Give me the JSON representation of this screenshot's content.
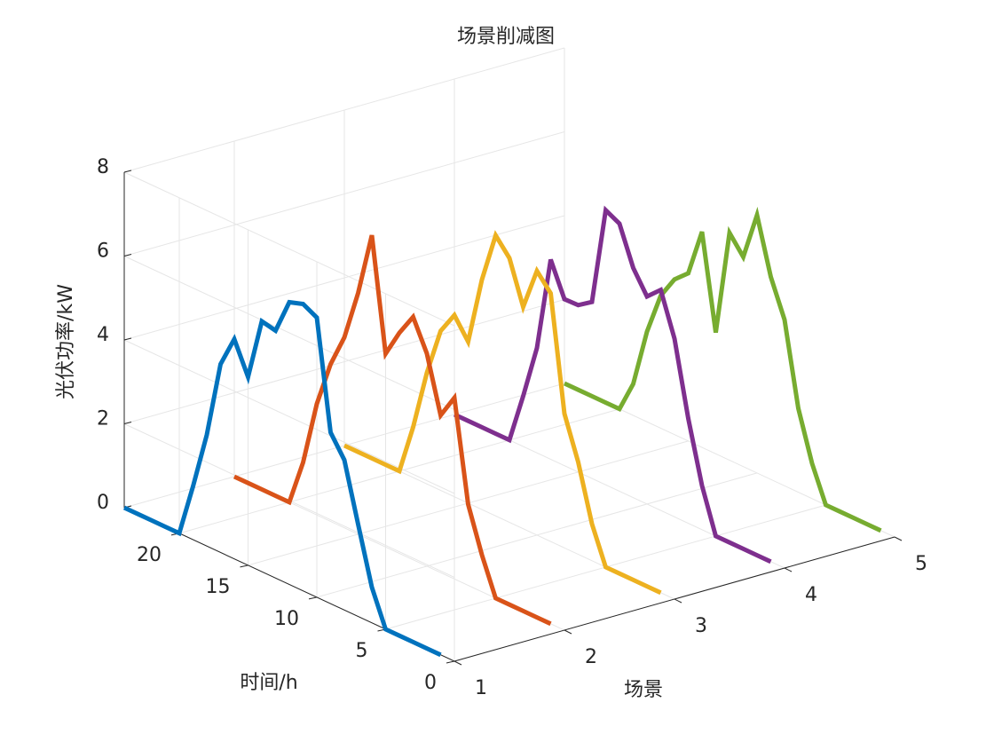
{
  "chart_data": {
    "type": "line3d",
    "title": "场景削减图",
    "xlabel": "场景",
    "ylabel": "时间/h",
    "zlabel": "光伏功率/kW",
    "y": [
      1,
      2,
      3,
      4,
      5,
      6,
      7,
      8,
      9,
      10,
      11,
      12,
      13,
      14,
      15,
      16,
      17,
      18,
      19,
      20,
      21,
      22,
      23,
      24
    ],
    "series": [
      {
        "x": 1,
        "color": "#0072BD",
        "values": [
          0,
          0,
          0,
          0,
          0,
          0.85,
          2.2,
          3.58,
          4.08,
          6.67,
          6.84,
          6.73,
          5.9,
          5.97,
          4.49,
          5.24,
          4.49,
          2.65,
          1.27,
          0,
          0,
          0,
          0,
          0
        ]
      },
      {
        "x": 2,
        "color": "#D95319",
        "values": [
          0,
          0,
          0,
          0,
          0,
          0.88,
          1.93,
          4.32,
          3.75,
          5.07,
          5.79,
          5.26,
          4.61,
          7.28,
          5.75,
          4.54,
          3.75,
          2.65,
          1.1,
          0,
          0,
          0,
          0,
          0
        ]
      },
      {
        "x": 3,
        "color": "#EDB120",
        "values": [
          0,
          0,
          0,
          0,
          0,
          0.88,
          2.2,
          3.2,
          5.92,
          6.3,
          5.29,
          6.3,
          6.69,
          5.48,
          3.85,
          4.33,
          3.8,
          2.65,
          1.2,
          0,
          0,
          0,
          0,
          0
        ]
      },
      {
        "x": 4,
        "color": "#7E2F8E",
        "values": [
          0,
          0,
          0,
          0,
          0,
          1.05,
          2.5,
          4.25,
          5.26,
          4.95,
          5.48,
          6.38,
          6.55,
          4.21,
          3.98,
          3.97,
          4.76,
          2.5,
          1.2,
          0,
          0,
          0,
          0,
          0
        ]
      },
      {
        "x": 5,
        "color": "#77AC30",
        "values": [
          0,
          0,
          0,
          0,
          0,
          0.84,
          2.0,
          3.96,
          4.83,
          6.15,
          5.0,
          5.42,
          2.89,
          5.14,
          4.0,
          3.7,
          3.16,
          2.15,
          0.75,
          0,
          0,
          0,
          0,
          0
        ]
      }
    ],
    "xlim": [
      1,
      5
    ],
    "xticks": [
      1,
      2,
      3,
      4,
      5
    ],
    "ylim": [
      0,
      24
    ],
    "yticks": [
      0,
      5,
      10,
      15,
      20
    ],
    "zlim": [
      0,
      8
    ],
    "zticks": [
      0,
      2,
      4,
      6,
      8
    ],
    "grid": true
  }
}
